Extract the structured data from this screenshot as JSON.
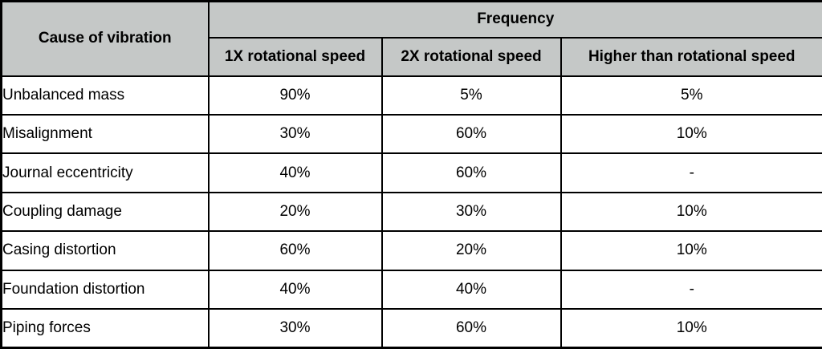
{
  "table": {
    "corner_header": "Cause of vibration",
    "group_header": "Frequency",
    "sub_headers": [
      "1X rotational speed",
      "2X rotational speed",
      "Higher than rotational speed"
    ],
    "rows": [
      {
        "cause": "Unbalanced mass",
        "values": [
          "90%",
          "5%",
          "5%"
        ]
      },
      {
        "cause": "Misalignment",
        "values": [
          "30%",
          "60%",
          "10%"
        ]
      },
      {
        "cause": "Journal eccentricity",
        "values": [
          "40%",
          "60%",
          "-"
        ]
      },
      {
        "cause": "Coupling damage",
        "values": [
          "20%",
          "30%",
          "10%"
        ]
      },
      {
        "cause": "Casing distortion",
        "values": [
          "60%",
          "20%",
          "10%"
        ]
      },
      {
        "cause": "Foundation distortion",
        "values": [
          "40%",
          "40%",
          "-"
        ]
      },
      {
        "cause": "Piping forces",
        "values": [
          "30%",
          "60%",
          "10%"
        ]
      }
    ],
    "colors": {
      "header_bg": "#c5c8c7",
      "border": "#000000",
      "text": "#000000",
      "cell_bg": "#ffffff"
    }
  },
  "chart_data": {
    "type": "table",
    "title": "",
    "columns": [
      "Cause of vibration",
      "1X rotational speed",
      "2X rotational speed",
      "Higher than rotational speed"
    ],
    "column_group": {
      "label": "Frequency",
      "spans": [
        "1X rotational speed",
        "2X rotational speed",
        "Higher than rotational speed"
      ]
    },
    "rows": [
      [
        "Unbalanced mass",
        "90%",
        "5%",
        "5%"
      ],
      [
        "Misalignment",
        "30%",
        "60%",
        "10%"
      ],
      [
        "Journal eccentricity",
        "40%",
        "60%",
        "-"
      ],
      [
        "Coupling damage",
        "20%",
        "30%",
        "10%"
      ],
      [
        "Casing distortion",
        "60%",
        "20%",
        "10%"
      ],
      [
        "Foundation distortion",
        "40%",
        "40%",
        "-"
      ],
      [
        "Piping forces",
        "30%",
        "60%",
        "10%"
      ]
    ]
  }
}
